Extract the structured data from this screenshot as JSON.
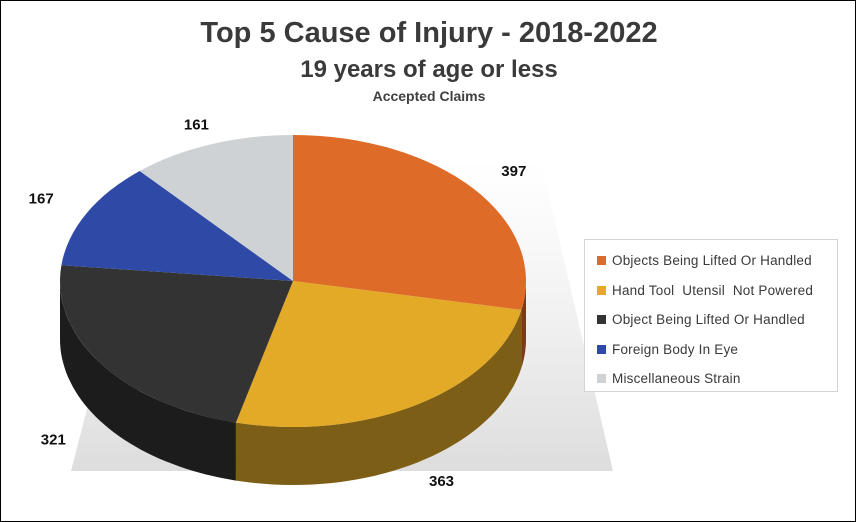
{
  "chart_data": {
    "type": "pie",
    "title": "Top 5 Cause of Injury - 2018-2022",
    "subtitle": "19 years of age or less",
    "caption": "Accepted Claims",
    "legend_position": "right",
    "slices": [
      {
        "label": "Objects Being Lifted Or Handled",
        "value": 397,
        "color": "#df6b29"
      },
      {
        "label": "Hand Tool  Utensil  Not Powered",
        "value": 363,
        "color": "#e3aa28"
      },
      {
        "label": "Object Being Lifted Or Handled",
        "value": 321,
        "color": "#333333"
      },
      {
        "label": "Foreign Body In Eye",
        "value": 167,
        "color": "#2f4aa6"
      },
      {
        "label": "Miscellaneous Strain",
        "value": 161,
        "color": "#cfd2d4"
      }
    ]
  }
}
